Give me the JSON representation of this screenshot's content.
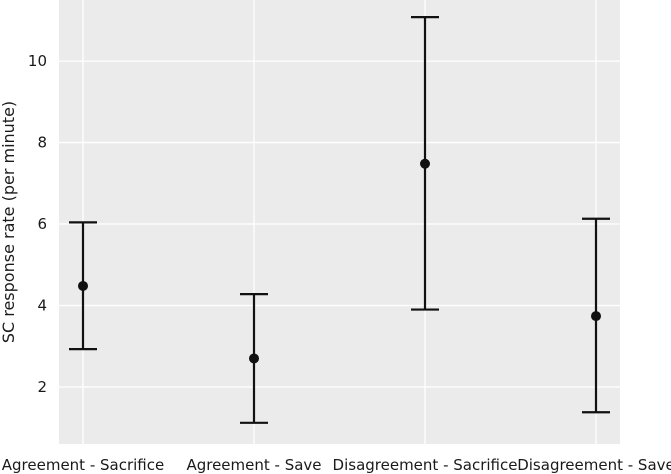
{
  "chart_data": {
    "type": "scatter",
    "style": "point estimates with error bars",
    "title": "",
    "xlabel": "",
    "ylabel": "SC response rate (per minute)",
    "categories": [
      "Agreement - Sacrifice",
      "Agreement - Save",
      "Disagreement - Sacrifice",
      "Disagreement - Save"
    ],
    "values": [
      4.48,
      2.7,
      7.48,
      3.74
    ],
    "error_low": [
      2.93,
      1.12,
      3.9,
      1.38
    ],
    "error_high": [
      6.04,
      4.28,
      11.08,
      6.13
    ],
    "yticks": [
      2,
      4,
      6,
      8,
      10
    ],
    "ylim": [
      0.6,
      11.5
    ],
    "grid": true,
    "background_color": "#ebebeb",
    "grid_color": "#ffffff",
    "marker_color": "#111111"
  }
}
